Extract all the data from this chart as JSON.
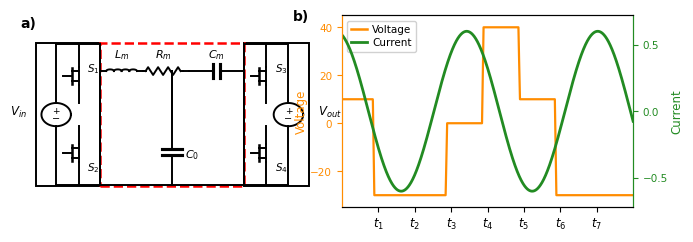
{
  "panel_b": {
    "voltage_color": "#FF8C00",
    "current_color": "#228B22",
    "voltage_ylim": [
      -35,
      45
    ],
    "current_ylim": [
      -0.72,
      0.72
    ],
    "ylabel_voltage": "Voltage",
    "ylabel_current": "Current",
    "voltage_yticks": [
      -20,
      0,
      20,
      40
    ],
    "current_yticks": [
      -0.5,
      0.0,
      0.5
    ],
    "xtick_positions": [
      1,
      2,
      3,
      4,
      5,
      6,
      7
    ],
    "xtick_labels": [
      "$t_1$",
      "$t_2$",
      "$t_3$",
      "$t_4$",
      "$t_5$",
      "$t_6$",
      "$t_7$"
    ],
    "xlim": [
      0,
      8
    ],
    "current_amplitude": 0.6,
    "current_period": 3.6,
    "current_phase": 0.3,
    "title_b": "b)"
  },
  "panel_a": {
    "title_a": "a)"
  },
  "lw": 1.4,
  "bg_color": "#ffffff"
}
